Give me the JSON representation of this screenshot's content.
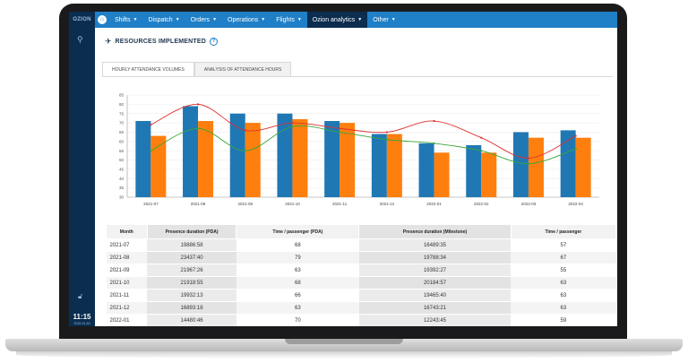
{
  "nav": {
    "brand": "OZION",
    "items": [
      {
        "label": "Shifts",
        "active": false
      },
      {
        "label": "Dispatch",
        "active": false
      },
      {
        "label": "Orders",
        "active": false
      },
      {
        "label": "Operations",
        "active": false
      },
      {
        "label": "Flights",
        "active": false
      },
      {
        "label": "Ozion analytics",
        "active": true
      },
      {
        "label": "Other",
        "active": false
      }
    ],
    "caret": "▼",
    "home_icon": "home-icon"
  },
  "sidebar": {
    "search_icon": "search-icon",
    "lock_icon": "lock-icon",
    "clock": "11:15",
    "date": "2022-01-30"
  },
  "page": {
    "title": "RESOURCES IMPLEMENTED",
    "help": "?",
    "tabs": [
      "HOURLY ATTENDANCE VOLUMES",
      "ANALYSIS OF ATTENDANCE HOURS"
    ],
    "active_tab": 0
  },
  "chart_data": {
    "type": "bar",
    "categories": [
      "2021-07",
      "2021-08",
      "2021-09",
      "2021-10",
      "2021-11",
      "2021-12",
      "2022-01",
      "2022-02",
      "2022-03",
      "2022-04"
    ],
    "ylim": [
      30,
      85
    ],
    "yticks": [
      30,
      35,
      40,
      45,
      50,
      55,
      60,
      65,
      70,
      75,
      80,
      85
    ],
    "series": [
      {
        "kind": "bar",
        "color": "#1f78b4",
        "values": [
          71,
          79,
          75,
          75,
          71,
          64,
          59,
          58,
          65,
          66
        ]
      },
      {
        "kind": "bar",
        "color": "#ff7f0e",
        "values": [
          63,
          71,
          70,
          72,
          70,
          64,
          54,
          54,
          62,
          62
        ]
      },
      {
        "kind": "line",
        "color": "#e03030",
        "values": [
          69,
          80,
          66,
          70,
          67,
          65,
          71,
          62,
          51,
          63
        ]
      },
      {
        "kind": "line",
        "color": "#3aa63a",
        "values": [
          55,
          67,
          55,
          68,
          65,
          61,
          59,
          55,
          48,
          56
        ]
      }
    ],
    "grid": true
  },
  "table": {
    "headers": [
      "Month",
      "Presence duration (PDA)",
      "Time / passenger (PDA)",
      "Presence duration (Milestone)",
      "Time / passenger"
    ],
    "rows": [
      [
        "2021-07",
        "19886:58",
        "68",
        "16489:35",
        "57"
      ],
      [
        "2021-08",
        "23437:40",
        "79",
        "19788:34",
        "67"
      ],
      [
        "2021-09",
        "21967:26",
        "63",
        "19392:27",
        "55"
      ],
      [
        "2021-10",
        "21918:55",
        "68",
        "20184:57",
        "63"
      ],
      [
        "2021-11",
        "19932:13",
        "66",
        "19465:40",
        "63"
      ],
      [
        "2021-12",
        "16893:18",
        "63",
        "16743:21",
        "63"
      ],
      [
        "2022-01",
        "14480:46",
        "70",
        "12243:45",
        "59"
      ]
    ]
  }
}
